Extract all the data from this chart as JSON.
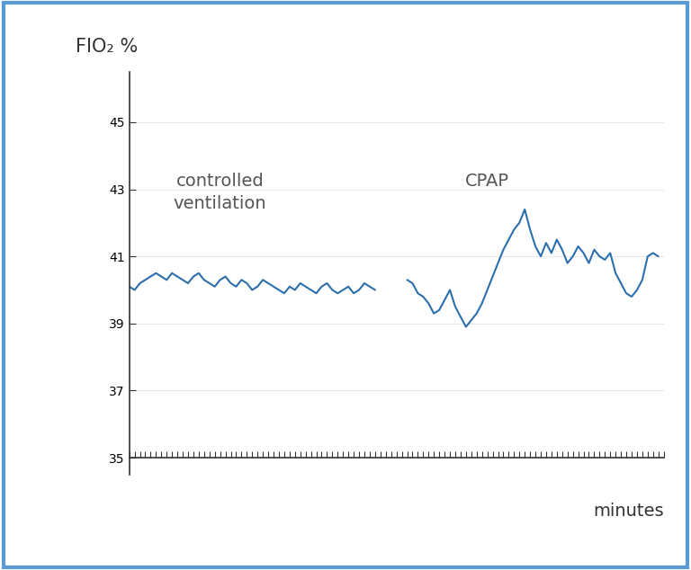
{
  "ylabel": "FIO₂ %",
  "xlabel": "minutes",
  "yticks": [
    35,
    37,
    39,
    41,
    43,
    45
  ],
  "ylim": [
    34.5,
    46.5
  ],
  "xlim": [
    0,
    100
  ],
  "line_color": "#2c6fad",
  "background_color": "#ffffff",
  "border_color": "#5b9bd5",
  "annotation_controlled": "controlled\nventilation",
  "annotation_cpap": "CPAP",
  "controlled_x": [
    0,
    1,
    2,
    3,
    4,
    5,
    6,
    7,
    8,
    9,
    10,
    11,
    12,
    13,
    14,
    15,
    16,
    17,
    18,
    19,
    20,
    21,
    22,
    23,
    24,
    25,
    26,
    27,
    28,
    29,
    30,
    31,
    32,
    33,
    34,
    35,
    36,
    37,
    38,
    39,
    40,
    41,
    42,
    43,
    44,
    45,
    46
  ],
  "controlled_y": [
    40.1,
    40.0,
    40.2,
    40.3,
    40.4,
    40.5,
    40.4,
    40.3,
    40.5,
    40.4,
    40.3,
    40.2,
    40.4,
    40.5,
    40.3,
    40.2,
    40.1,
    40.3,
    40.4,
    40.2,
    40.1,
    40.3,
    40.2,
    40.0,
    40.1,
    40.3,
    40.2,
    40.1,
    40.0,
    39.9,
    40.1,
    40.0,
    40.2,
    40.1,
    40.0,
    39.9,
    40.1,
    40.2,
    40.0,
    39.9,
    40.0,
    40.1,
    39.9,
    40.0,
    40.2,
    40.1,
    40.0
  ],
  "cpap_x": [
    52,
    53,
    54,
    55,
    56,
    57,
    58,
    59,
    60,
    61,
    62,
    63,
    64,
    65,
    66,
    67,
    68,
    69,
    70,
    71,
    72,
    73,
    74,
    75,
    76,
    77,
    78,
    79,
    80,
    81,
    82,
    83,
    84,
    85,
    86,
    87,
    88,
    89,
    90,
    91,
    92,
    93,
    94,
    95,
    96,
    97,
    98,
    99
  ],
  "cpap_y": [
    40.3,
    40.2,
    39.9,
    39.8,
    39.6,
    39.3,
    39.4,
    39.7,
    40.0,
    39.5,
    39.2,
    38.9,
    39.1,
    39.3,
    39.6,
    40.0,
    40.4,
    40.8,
    41.2,
    41.5,
    41.8,
    42.0,
    42.4,
    41.8,
    41.3,
    41.0,
    41.4,
    41.1,
    41.5,
    41.2,
    40.8,
    41.0,
    41.3,
    41.1,
    40.8,
    41.2,
    41.0,
    40.9,
    41.1,
    40.5,
    40.2,
    39.9,
    39.8,
    40.0,
    40.3,
    41.0,
    41.1,
    41.0
  ]
}
